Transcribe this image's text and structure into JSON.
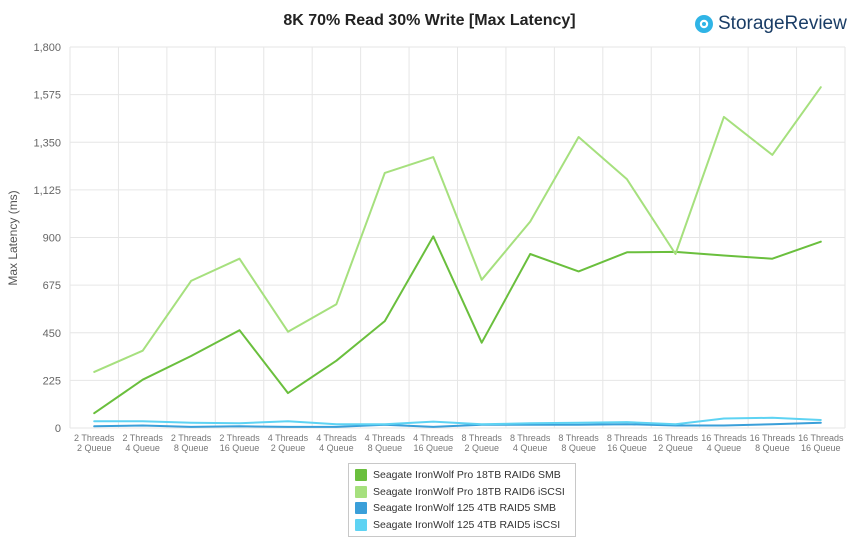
{
  "brand": {
    "name": "StorageReview"
  },
  "chart_data": {
    "type": "line",
    "title": "8K 70% Read 30% Write [Max Latency]",
    "ylabel": "Max Latency  (ms)",
    "xlabel": "",
    "ylim": [
      0,
      1800
    ],
    "yticks": [
      0,
      225,
      450,
      675,
      900,
      1125,
      1350,
      1575,
      1800
    ],
    "ytick_labels": [
      "0",
      "225",
      "450",
      "675",
      "900",
      "1,125",
      "1,350",
      "1,575",
      "1,800"
    ],
    "grid": true,
    "legend_position": "bottom",
    "categories": [
      [
        "2 Threads",
        "2 Queue"
      ],
      [
        "2 Threads",
        "4 Queue"
      ],
      [
        "2 Threads",
        "8 Queue"
      ],
      [
        "2 Threads",
        "16 Queue"
      ],
      [
        "4 Threads",
        "2 Queue"
      ],
      [
        "4 Threads",
        "4 Queue"
      ],
      [
        "4 Threads",
        "8 Queue"
      ],
      [
        "4 Threads",
        "16 Queue"
      ],
      [
        "8 Threads",
        "2 Queue"
      ],
      [
        "8 Threads",
        "4 Queue"
      ],
      [
        "8 Threads",
        "8 Queue"
      ],
      [
        "8 Threads",
        "16 Queue"
      ],
      [
        "16 Threads",
        "2 Queue"
      ],
      [
        "16 Threads",
        "4 Queue"
      ],
      [
        "16 Threads",
        "8 Queue"
      ],
      [
        "16 Threads",
        "16 Queue"
      ]
    ],
    "series": [
      {
        "name": "Seagate IronWolf Pro 18TB RAID6 SMB",
        "color": "#6abf3d",
        "values": [
          70,
          228,
          340,
          462,
          165,
          318,
          505,
          905,
          403,
          822,
          740,
          830,
          832,
          815,
          800,
          880
        ]
      },
      {
        "name": "Seagate IronWolf Pro 18TB RAID6 iSCSI",
        "color": "#a6e07e",
        "values": [
          265,
          365,
          695,
          800,
          455,
          585,
          1205,
          1280,
          700,
          975,
          1375,
          1175,
          822,
          1470,
          1290,
          1610
        ]
      },
      {
        "name": "Seagate IronWolf 125 4TB RAID5 SMB",
        "color": "#3a9fd9",
        "values": [
          8,
          12,
          5,
          8,
          5,
          5,
          15,
          5,
          15,
          15,
          15,
          18,
          12,
          12,
          18,
          25
        ]
      },
      {
        "name": "Seagate IronWolf 125 4TB RAID5 iSCSI",
        "color": "#5ed3f3",
        "values": [
          32,
          32,
          25,
          22,
          32,
          18,
          18,
          30,
          18,
          22,
          25,
          28,
          18,
          45,
          48,
          38
        ]
      }
    ]
  }
}
